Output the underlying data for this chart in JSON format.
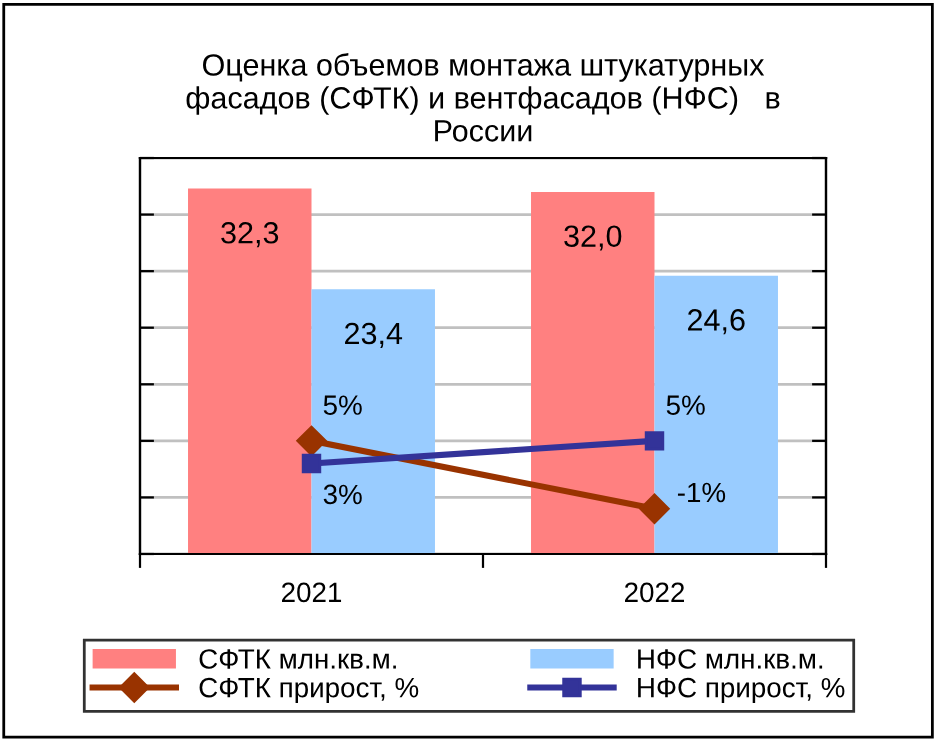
{
  "chart_data": {
    "type": "bar",
    "title": "Оценка объемов монтажа штукатурных\nфасадов (СФТК) и вентфасадов (НФС)   в\nРоссии",
    "categories": [
      "2021",
      "2022"
    ],
    "series": [
      {
        "name": "СФТК млн.кв.м.",
        "color": "#ff8080",
        "values": [
          32.3,
          32.0
        ],
        "value_labels": [
          "32,3",
          "32,0"
        ]
      },
      {
        "name": "НФС млн.кв.м.",
        "color": "#99ccff",
        "values": [
          23.4,
          24.6
        ],
        "value_labels": [
          "23,4",
          "24,6"
        ]
      },
      {
        "name": "СФТК прирост, %",
        "type": "line",
        "axis": "y2",
        "marker": "diamond",
        "color": "#993300",
        "values": [
          5,
          -1
        ],
        "value_labels": [
          "5%",
          "-1%"
        ]
      },
      {
        "name": "НФС прирост, %",
        "type": "line",
        "axis": "y2",
        "marker": "square",
        "color": "#333399",
        "values": [
          3,
          5
        ],
        "value_labels": [
          "3%",
          "5%"
        ]
      }
    ],
    "ylim": [
      0,
      35
    ],
    "yticks": [
      {
        "value": 0,
        "label": null
      },
      {
        "value": 5,
        "label": null
      },
      {
        "value": 10,
        "label": null
      },
      {
        "value": 15,
        "label": null
      },
      {
        "value": 20,
        "label": null
      },
      {
        "value": 25,
        "label": null
      },
      {
        "value": 30,
        "label": null
      },
      {
        "value": 35,
        "label": null
      }
    ],
    "y2lim": [
      -5,
      30
    ],
    "y2ticks": [
      {
        "value": -5,
        "label": null
      },
      {
        "value": 0,
        "label": null
      },
      {
        "value": 5,
        "label": null
      },
      {
        "value": 10,
        "label": null
      },
      {
        "value": 15,
        "label": null
      },
      {
        "value": 20,
        "label": null
      },
      {
        "value": 25,
        "label": null
      },
      {
        "value": 30,
        "label": null
      }
    ],
    "tick_labels": "x",
    "grid": "y",
    "legend": "bottom"
  }
}
